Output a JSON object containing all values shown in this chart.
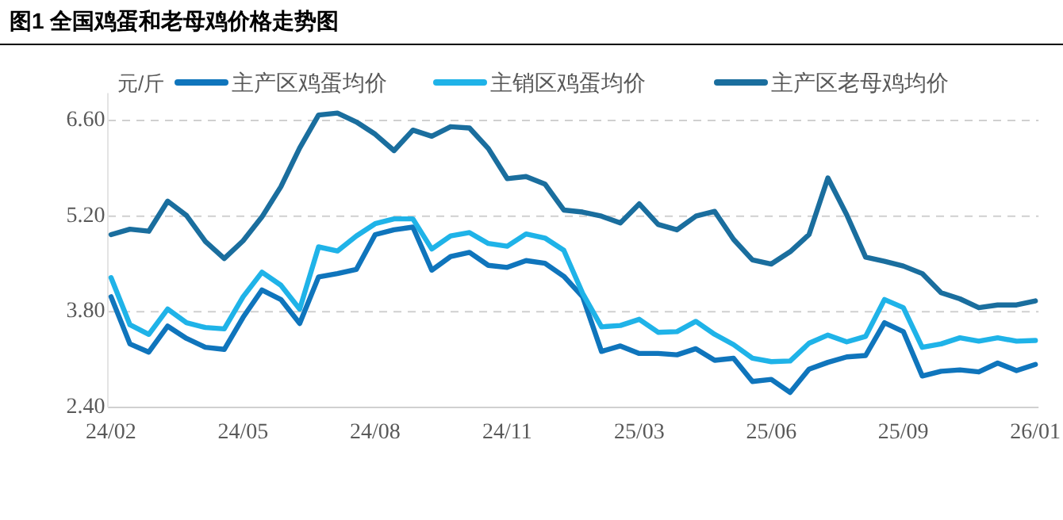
{
  "chart_data": {
    "type": "line",
    "title": "图1  全国鸡蛋和老母鸡价格走势图",
    "ylabel": "元/斤",
    "categories": [
      "24/02",
      null,
      null,
      null,
      null,
      null,
      null,
      "24/05",
      null,
      null,
      null,
      null,
      null,
      null,
      "24/08",
      null,
      null,
      null,
      null,
      null,
      null,
      "24/11",
      null,
      null,
      null,
      null,
      null,
      null,
      "25/03",
      null,
      null,
      null,
      null,
      null,
      null,
      "25/06",
      null,
      null,
      null,
      null,
      null,
      null,
      "25/09",
      null,
      null,
      null,
      null,
      null,
      null,
      "26/01"
    ],
    "ylim": [
      2.4,
      7.0
    ],
    "yticks": [
      {
        "value": 2.4,
        "label": "2.40"
      },
      {
        "value": 3.8,
        "label": "3.80"
      },
      {
        "value": 5.2,
        "label": "5.20"
      },
      {
        "value": 6.6,
        "label": "6.60"
      }
    ],
    "grid": "y",
    "legend": "top",
    "marker": "none",
    "line_style": "solid",
    "series": [
      {
        "name": "主产区鸡蛋均价",
        "color": "#0f75bc",
        "values": [
          4.02,
          3.33,
          3.21,
          3.59,
          3.41,
          3.28,
          3.25,
          3.72,
          4.12,
          3.98,
          3.63,
          4.31,
          4.36,
          4.42,
          4.93,
          5.0,
          5.04,
          4.41,
          4.61,
          4.67,
          4.48,
          4.45,
          4.55,
          4.51,
          4.32,
          4.02,
          3.22,
          3.3,
          3.19,
          3.19,
          3.17,
          3.26,
          3.09,
          3.12,
          2.78,
          2.81,
          2.62,
          2.96,
          3.06,
          3.14,
          3.16,
          3.64,
          3.51,
          2.86,
          2.93,
          2.95,
          2.92,
          3.05,
          2.94,
          3.03
        ]
      },
      {
        "name": "主销区鸡蛋均价",
        "color": "#1fb3e8",
        "values": [
          4.3,
          3.61,
          3.47,
          3.84,
          3.64,
          3.57,
          3.55,
          4.02,
          4.38,
          4.19,
          3.84,
          4.75,
          4.69,
          4.91,
          5.09,
          5.16,
          5.16,
          4.72,
          4.91,
          4.96,
          4.8,
          4.76,
          4.94,
          4.88,
          4.7,
          4.07,
          3.58,
          3.6,
          3.69,
          3.5,
          3.51,
          3.66,
          3.47,
          3.32,
          3.12,
          3.07,
          3.08,
          3.34,
          3.46,
          3.36,
          3.44,
          3.98,
          3.86,
          3.28,
          3.33,
          3.42,
          3.37,
          3.42,
          3.37,
          3.38
        ]
      },
      {
        "name": "主产区老母鸡均价",
        "color": "#1a6e9e",
        "values": [
          4.93,
          5.01,
          4.98,
          5.42,
          5.21,
          4.83,
          4.58,
          4.84,
          5.19,
          5.63,
          6.2,
          6.68,
          6.71,
          6.58,
          6.4,
          6.16,
          6.46,
          6.37,
          6.51,
          6.49,
          6.19,
          5.75,
          5.78,
          5.67,
          5.29,
          5.26,
          5.2,
          5.1,
          5.38,
          5.08,
          5.0,
          5.2,
          5.27,
          4.86,
          4.56,
          4.5,
          4.68,
          4.93,
          5.76,
          5.22,
          4.6,
          4.54,
          4.47,
          4.36,
          4.08,
          3.99,
          3.86,
          3.9,
          3.9,
          3.96
        ]
      }
    ]
  }
}
